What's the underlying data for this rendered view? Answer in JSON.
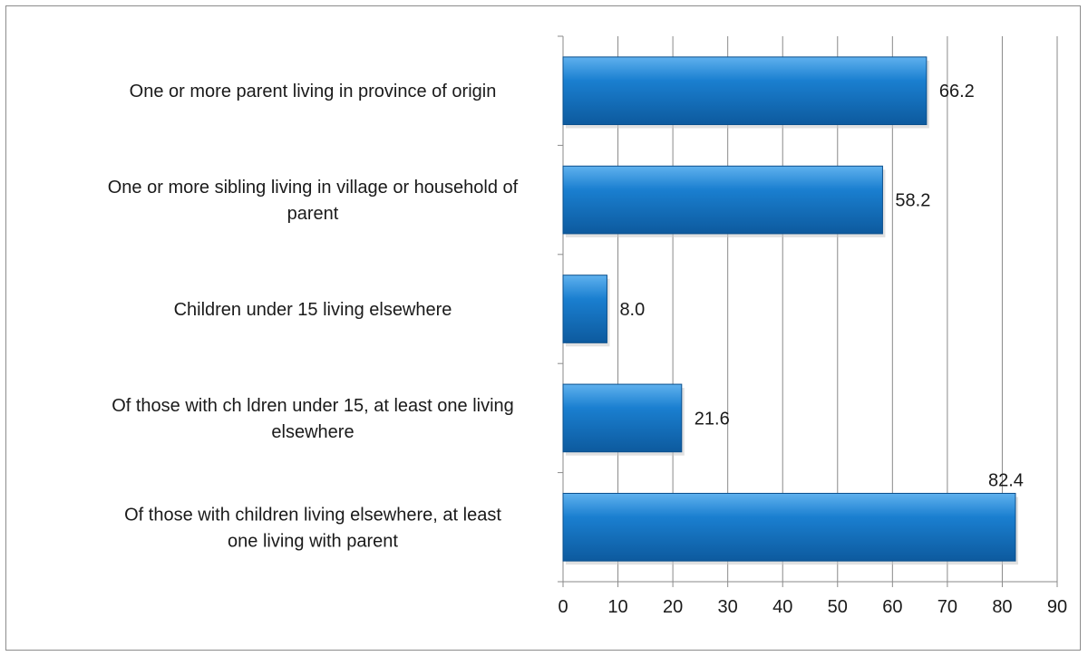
{
  "chart_data": {
    "type": "bar",
    "orientation": "horizontal",
    "categories": [
      "One or more parent living in province of origin",
      "One or more sibling living in village or household of parent",
      "Children under 15 living elsewhere",
      "Of those with ch ldren under 15, at least one living elsewhere",
      "Of those with children living elsewhere, at least one living with parent"
    ],
    "category_lines": [
      [
        "One or more parent living in province of origin"
      ],
      [
        "One or more sibling living in village or household of",
        "parent"
      ],
      [
        "Children under 15 living elsewhere"
      ],
      [
        "Of those with ch ldren under 15, at least one living",
        "elsewhere"
      ],
      [
        "Of those with children living elsewhere, at least",
        "one living with parent"
      ]
    ],
    "values": [
      66.2,
      58.2,
      8.0,
      21.6,
      82.4
    ],
    "data_labels": [
      "66.2",
      "58.2",
      "8.0",
      "21.6",
      "82.4"
    ],
    "xlim": [
      0,
      90
    ],
    "ticks": [
      0,
      10,
      20,
      30,
      40,
      50,
      60,
      70,
      80,
      90
    ],
    "grid": true,
    "legend": "none",
    "bar_color": "#1a7fd0",
    "bar_color_light": "#5fb1ee",
    "bar_color_dark": "#0d5a9e"
  }
}
